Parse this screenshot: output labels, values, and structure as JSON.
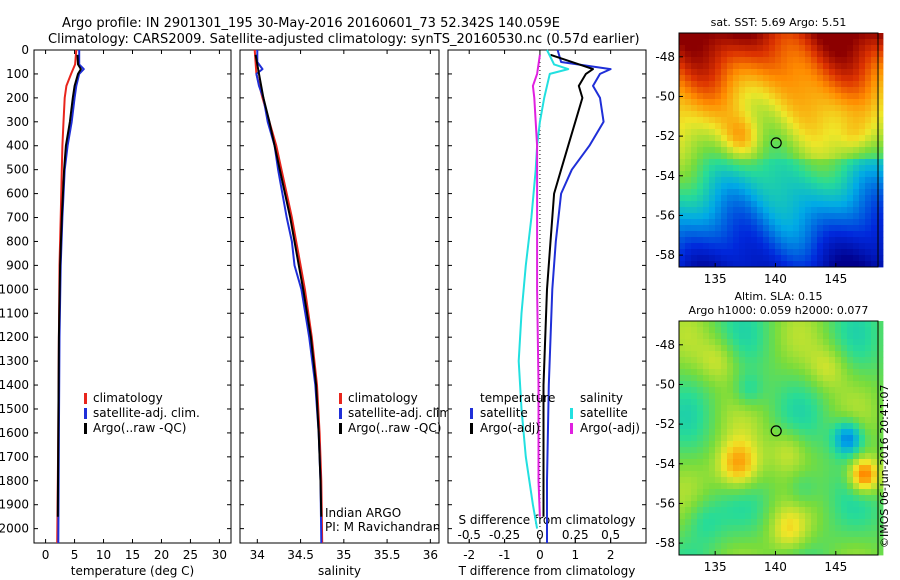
{
  "header": {
    "line1": "Argo profile: IN 2901301_195 30-May-2016 20160601_73 52.342S 140.059E",
    "line2": "Climatology: CARS2009. Satellite-adjusted climatology: synTS_20160530.nc (0.57d earlier)"
  },
  "colors": {
    "red": "#e8251c",
    "blue": "#1f2fd8",
    "black": "#000000",
    "cyan": "#22e0e0",
    "magenta": "#e020e0"
  },
  "chart_data": [
    {
      "id": "temperature",
      "type": "line",
      "xlabel": "temperature (deg C)",
      "ylabel": "",
      "xlim": [
        -2,
        32
      ],
      "ylim": [
        2060,
        0
      ],
      "xticks": [
        0,
        5,
        10,
        15,
        20,
        25,
        30
      ],
      "xticklabels": [
        "0",
        "5",
        "10",
        "15",
        "20",
        "25",
        "30"
      ],
      "yticks": [
        0,
        100,
        200,
        300,
        400,
        500,
        600,
        700,
        800,
        900,
        1000,
        1100,
        1200,
        1300,
        1400,
        1500,
        1600,
        1700,
        1800,
        1900,
        2000
      ],
      "yticklabels": [
        "0",
        "100",
        "200",
        "300",
        "400",
        "500",
        "600",
        "700",
        "800",
        "900",
        "1000",
        "1100",
        "1200",
        "1300",
        "1400",
        "1500",
        "1600",
        "1700",
        "1800",
        "1900",
        "2000"
      ],
      "legend": {
        "position": "center",
        "entries": [
          {
            "label": "climatology",
            "color": "red"
          },
          {
            "label": "satellite-adj. clim.",
            "color": "blue"
          },
          {
            "label": "Argo(..raw -QC)",
            "color": "black"
          }
        ]
      },
      "series": [
        {
          "name": "climatology",
          "color": "red",
          "depth": [
            0,
            60,
            100,
            150,
            200,
            300,
            400,
            500,
            700,
            900,
            1200,
            1600,
            2060
          ],
          "values": [
            5.3,
            5.1,
            4.4,
            3.6,
            3.3,
            3.1,
            2.9,
            2.8,
            2.6,
            2.4,
            2.3,
            2.2,
            2.0
          ]
        },
        {
          "name": "satellite-adj. clim.",
          "color": "blue",
          "depth": [
            0,
            60,
            80,
            100,
            150,
            200,
            300,
            400,
            500,
            700,
            900,
            1200,
            1600,
            2060
          ],
          "values": [
            5.8,
            5.8,
            6.6,
            5.8,
            5.3,
            5.0,
            4.5,
            3.8,
            3.3,
            2.9,
            2.6,
            2.4,
            2.3,
            2.2
          ]
        },
        {
          "name": "Argo(..raw -QC)",
          "color": "black",
          "depth": [
            20,
            60,
            80,
            100,
            150,
            200,
            300,
            400,
            500,
            700,
            900,
            1200,
            1600,
            1950
          ],
          "values": [
            5.5,
            5.6,
            6.1,
            5.6,
            5.0,
            4.7,
            4.2,
            3.5,
            3.2,
            2.8,
            2.5,
            2.3,
            2.2,
            2.1
          ]
        }
      ]
    },
    {
      "id": "salinity",
      "type": "line",
      "xlabel": "salinity",
      "ylabel": "",
      "xlim": [
        33.8,
        36.1
      ],
      "ylim": [
        2060,
        0
      ],
      "xticks": [
        34,
        34.5,
        35,
        35.5,
        36
      ],
      "xticklabels": [
        "34",
        "34.5",
        "35",
        "35.5",
        "36"
      ],
      "legend": {
        "position": "center-right",
        "entries": [
          {
            "label": "climatology",
            "color": "red"
          },
          {
            "label": "satellite-adj. clim.",
            "color": "blue"
          },
          {
            "label": "Argo(..raw -QC)",
            "color": "black"
          }
        ]
      },
      "annotation": [
        "Indian ARGO",
        "PI: M Ravichandran"
      ],
      "series": [
        {
          "name": "climatology",
          "color": "red",
          "depth": [
            0,
            100,
            200,
            300,
            400,
            500,
            600,
            700,
            800,
            900,
            1000,
            1200,
            1400,
            1600,
            1800,
            2060
          ],
          "values": [
            33.97,
            33.99,
            34.06,
            34.14,
            34.22,
            34.28,
            34.34,
            34.4,
            34.45,
            34.5,
            34.55,
            34.63,
            34.69,
            34.72,
            34.74,
            34.75
          ]
        },
        {
          "name": "satellite-adj. clim.",
          "color": "blue",
          "depth": [
            0,
            50,
            80,
            100,
            150,
            200,
            300,
            400,
            500,
            600,
            700,
            800,
            900,
            1000,
            1200,
            1400,
            1600,
            1800,
            2060
          ],
          "values": [
            34.0,
            34.0,
            34.06,
            33.99,
            34.02,
            34.07,
            34.12,
            34.2,
            34.24,
            34.29,
            34.34,
            34.4,
            34.43,
            34.51,
            34.6,
            34.67,
            34.71,
            34.73,
            34.74
          ]
        },
        {
          "name": "Argo(..raw -QC)",
          "color": "black",
          "depth": [
            20,
            100,
            200,
            300,
            400,
            500,
            600,
            700,
            800,
            900,
            1000,
            1200,
            1400,
            1600,
            1800,
            1950
          ],
          "values": [
            33.98,
            34.02,
            34.07,
            34.14,
            34.2,
            34.26,
            34.32,
            34.38,
            34.43,
            34.48,
            34.53,
            34.62,
            34.68,
            34.71,
            34.73,
            34.74
          ]
        }
      ]
    },
    {
      "id": "difference",
      "type": "line",
      "xlabel": "T difference from climatology",
      "x2label": "S difference from climatology",
      "ylabel": "",
      "xlim": [
        -2.6,
        3.0
      ],
      "ylim": [
        2060,
        0
      ],
      "xticks": [
        -2,
        -1,
        0,
        1,
        2
      ],
      "xticklabels": [
        "-2",
        "-1",
        "0",
        "1",
        "2"
      ],
      "x2lim": [
        -0.65,
        0.75
      ],
      "x2ticks": [
        -0.5,
        -0.25,
        0,
        0.25,
        0.5
      ],
      "x2ticklabels": [
        "-0.5",
        "-0.25",
        "0",
        "0.25",
        "0.5"
      ],
      "legend": {
        "position": "center",
        "entries": [
          {
            "group": "temperature",
            "label": "satellite",
            "color": "blue"
          },
          {
            "group": "temperature",
            "label": "Argo(-adj)",
            "color": "black"
          },
          {
            "group": "salinity",
            "label": "satellite",
            "color": "cyan"
          },
          {
            "group": "salinity",
            "label": "Argo(-adj)",
            "color": "magenta"
          }
        ],
        "group_titles": [
          "temperature",
          "salinity"
        ]
      },
      "series": [
        {
          "name": "temperature satellite",
          "color": "blue",
          "axis": "T",
          "depth": [
            0,
            50,
            80,
            100,
            150,
            200,
            300,
            400,
            500,
            600,
            800,
            1000,
            1400,
            1800,
            2060
          ],
          "values": [
            0.5,
            0.6,
            2.0,
            1.7,
            1.5,
            1.7,
            1.8,
            1.4,
            0.9,
            0.6,
            0.45,
            0.35,
            0.25,
            0.2,
            0.2
          ]
        },
        {
          "name": "temperature Argo(-adj)",
          "color": "black",
          "axis": "T",
          "depth": [
            20,
            80,
            100,
            150,
            200,
            300,
            400,
            500,
            600,
            800,
            1000,
            1400,
            1800,
            1950
          ],
          "values": [
            0.3,
            1.5,
            1.3,
            1.1,
            1.2,
            1.0,
            0.8,
            0.6,
            0.4,
            0.3,
            0.2,
            0.1,
            0.1,
            0.1
          ]
        },
        {
          "name": "salinity satellite",
          "color": "cyan",
          "axis": "S",
          "depth": [
            0,
            60,
            80,
            100,
            150,
            200,
            300,
            400,
            500,
            700,
            900,
            1100,
            1300,
            1500,
            1700,
            1900,
            2000
          ],
          "values": [
            0.05,
            0.1,
            0.2,
            0.07,
            0.05,
            0.03,
            0.0,
            -0.02,
            -0.03,
            -0.06,
            -0.1,
            -0.13,
            -0.15,
            -0.13,
            -0.1,
            -0.05,
            -0.02
          ]
        },
        {
          "name": "salinity Argo(-adj)",
          "color": "magenta",
          "axis": "S",
          "depth": [
            20,
            100,
            150,
            200,
            300,
            400,
            500,
            700,
            1000,
            1400,
            1800,
            1950
          ],
          "values": [
            0.0,
            -0.02,
            -0.05,
            -0.04,
            -0.03,
            -0.02,
            -0.02,
            -0.02,
            -0.02,
            -0.01,
            -0.01,
            0.0
          ]
        }
      ]
    },
    {
      "id": "sst-map",
      "type": "heatmap",
      "title": "sat. SST: 5.69  Argo: 5.51",
      "xlim": [
        132,
        148.5
      ],
      "ylim": [
        -58.6,
        -46.8
      ],
      "xticks": [
        135,
        140,
        145
      ],
      "yticks": [
        -48,
        -50,
        -52,
        -54,
        -56,
        -58
      ],
      "marker": {
        "lon": 140.059,
        "lat": -52.342
      }
    },
    {
      "id": "sla-map",
      "type": "heatmap",
      "title_lines": [
        "Altim. SLA: 0.15",
        "Argo h1000: 0.059  h2000: 0.077"
      ],
      "xlim": [
        132,
        148.5
      ],
      "ylim": [
        -58.6,
        -46.8
      ],
      "xticks": [
        135,
        140,
        145
      ],
      "yticks": [
        -48,
        -50,
        -52,
        -54,
        -56,
        -58
      ],
      "marker": {
        "lon": 140.059,
        "lat": -52.342
      }
    }
  ],
  "footer": {
    "credit": "©IMOS 06-Jun-2016 20:41:07"
  }
}
